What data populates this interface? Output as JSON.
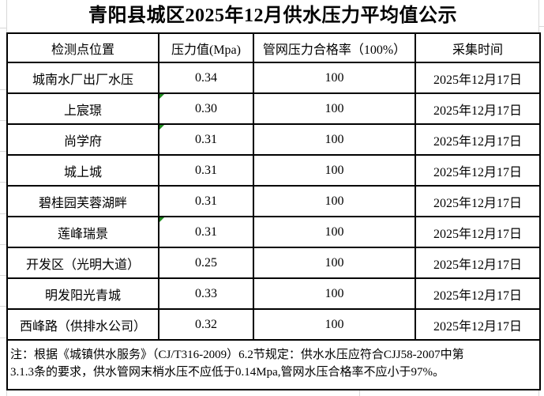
{
  "title": "青阳县城区2025年12月供水压力平均值公示",
  "table": {
    "headers": [
      "检测点位置",
      "压力值(Mpa)",
      "管网压力合格率（100%）",
      "采集时间"
    ],
    "rows": [
      {
        "location": "城南水厂出厂水压",
        "pressure": "0.34",
        "pass_rate": "100",
        "collect_time": "2025年12月17日",
        "error_flag": false
      },
      {
        "location": "上宸璟",
        "pressure": "0.30",
        "pass_rate": "100",
        "collect_time": "2025年12月17日",
        "error_flag": true
      },
      {
        "location": "尚学府",
        "pressure": "0.31",
        "pass_rate": "100",
        "collect_time": "2025年12月17日",
        "error_flag": true
      },
      {
        "location": "城上城",
        "pressure": "0.31",
        "pass_rate": "100",
        "collect_time": "2025年12月17日",
        "error_flag": false
      },
      {
        "location": "碧桂园芙蓉湖畔",
        "pressure": "0.31",
        "pass_rate": "100",
        "collect_time": "2025年12月17日",
        "error_flag": false
      },
      {
        "location": "莲峰瑞景",
        "pressure": "0.31",
        "pass_rate": "100",
        "collect_time": "2025年12月17日",
        "error_flag": true
      },
      {
        "location": "开发区（光明大道）",
        "pressure": "0.25",
        "pass_rate": "100",
        "collect_time": "2025年12月17日",
        "error_flag": false
      },
      {
        "location": "明发阳光青城",
        "pressure": "0.33",
        "pass_rate": "100",
        "collect_time": "2025年12月17日",
        "error_flag": false
      },
      {
        "location": "西峰路（供排水公司）",
        "pressure": "0.32",
        "pass_rate": "100",
        "collect_time": "2025年12月17日",
        "error_flag": false
      }
    ]
  },
  "note": {
    "line1": "注：根据《城镇供水服务》（CJ/T316-2009）6.2节规定：供水水压应符合CJJ58-2007中第",
    "line2": "3.1.3条的要求，供水管网末梢水压不应低于0.14Mpa,管网水压合格率不应小于97%。"
  },
  "colors": {
    "flag_green": "#1f8a1f",
    "border": "#000000",
    "gridline": "#d8d8d8"
  }
}
